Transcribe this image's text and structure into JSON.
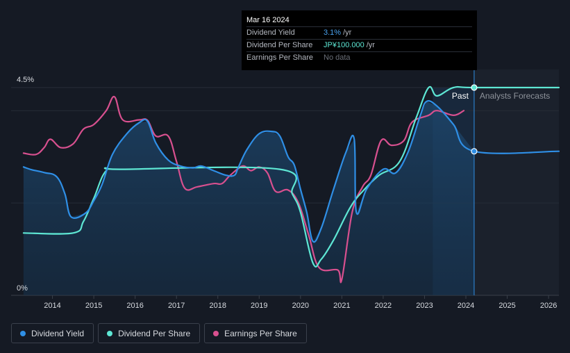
{
  "tooltip": {
    "date": "Mar 16 2024",
    "rows": [
      {
        "label": "Dividend Yield",
        "value": "3.1%",
        "unit": "/yr"
      },
      {
        "label": "Dividend Per Share",
        "value": "JP¥100.000",
        "unit": "/yr"
      },
      {
        "label": "Earnings Per Share",
        "value": "No data"
      }
    ]
  },
  "legend": [
    {
      "label": "Dividend Yield",
      "color": "#2f8fe6"
    },
    {
      "label": "Dividend Per Share",
      "color": "#5ee7d4"
    },
    {
      "label": "Earnings Per Share",
      "color": "#d8508f"
    }
  ],
  "chart_data": {
    "type": "line",
    "y_top_label": "4.5%",
    "y_bottom_label": "0%",
    "ylim": [
      0,
      4.5
    ],
    "xlim": [
      2013.0,
      2026.25
    ],
    "x_ticks": [
      "2014",
      "2015",
      "2016",
      "2017",
      "2018",
      "2019",
      "2020",
      "2021",
      "2022",
      "2023",
      "2024",
      "2025",
      "2026"
    ],
    "past_label": "Past",
    "forecast_label": "Analysts Forecasts",
    "highlight_start": 2023.2,
    "divider_x": 2024.2,
    "series": [
      {
        "name": "Dividend Yield",
        "color": "#2f8fe6",
        "points": [
          [
            2013.3,
            2.78
          ],
          [
            2013.5,
            2.72
          ],
          [
            2013.8,
            2.66
          ],
          [
            2014.1,
            2.57
          ],
          [
            2014.3,
            2.2
          ],
          [
            2014.45,
            1.7
          ],
          [
            2014.8,
            1.78
          ],
          [
            2015.0,
            2.05
          ],
          [
            2015.2,
            2.4
          ],
          [
            2015.45,
            3.05
          ],
          [
            2015.8,
            3.5
          ],
          [
            2016.1,
            3.74
          ],
          [
            2016.3,
            3.77
          ],
          [
            2016.5,
            3.3
          ],
          [
            2016.8,
            2.93
          ],
          [
            2017.1,
            2.8
          ],
          [
            2017.4,
            2.76
          ],
          [
            2017.6,
            2.8
          ],
          [
            2017.9,
            2.7
          ],
          [
            2018.2,
            2.6
          ],
          [
            2018.4,
            2.6
          ],
          [
            2018.5,
            2.78
          ],
          [
            2018.7,
            3.15
          ],
          [
            2019.0,
            3.5
          ],
          [
            2019.3,
            3.55
          ],
          [
            2019.5,
            3.45
          ],
          [
            2019.7,
            3.0
          ],
          [
            2019.85,
            2.82
          ],
          [
            2020.0,
            2.3
          ],
          [
            2020.15,
            1.8
          ],
          [
            2020.3,
            1.17
          ],
          [
            2020.5,
            1.45
          ],
          [
            2020.8,
            2.3
          ],
          [
            2021.1,
            3.1
          ],
          [
            2021.3,
            3.38
          ],
          [
            2021.35,
            1.8
          ],
          [
            2021.6,
            2.3
          ],
          [
            2022.0,
            2.73
          ],
          [
            2022.3,
            2.65
          ],
          [
            2022.6,
            3.1
          ],
          [
            2022.9,
            3.9
          ],
          [
            2023.05,
            4.2
          ],
          [
            2023.3,
            4.1
          ],
          [
            2023.7,
            3.7
          ],
          [
            2024.2,
            3.12
          ],
          [
            2026.25,
            3.12
          ]
        ]
      },
      {
        "name": "Dividend Per Share",
        "color": "#5ee7d4",
        "points": [
          [
            2013.3,
            1.35
          ],
          [
            2014.5,
            1.35
          ],
          [
            2014.75,
            1.6
          ],
          [
            2015.0,
            2.1
          ],
          [
            2015.3,
            2.7
          ],
          [
            2015.7,
            2.73
          ],
          [
            2019.5,
            2.73
          ],
          [
            2019.8,
            2.2
          ],
          [
            2020.0,
            1.8
          ],
          [
            2020.3,
            0.7
          ],
          [
            2020.5,
            0.78
          ],
          [
            2020.8,
            1.2
          ],
          [
            2021.2,
            1.9
          ],
          [
            2021.5,
            2.25
          ],
          [
            2021.9,
            2.6
          ],
          [
            2022.4,
            2.9
          ],
          [
            2022.8,
            3.85
          ],
          [
            2023.1,
            4.5
          ],
          [
            2023.3,
            4.32
          ],
          [
            2023.7,
            4.5
          ],
          [
            2024.2,
            4.5
          ],
          [
            2026.25,
            4.5
          ]
        ]
      },
      {
        "name": "Earnings Per Share",
        "color": "#d8508f",
        "points": [
          [
            2013.3,
            3.08
          ],
          [
            2013.6,
            3.05
          ],
          [
            2013.8,
            3.2
          ],
          [
            2013.95,
            3.38
          ],
          [
            2014.2,
            3.2
          ],
          [
            2014.5,
            3.28
          ],
          [
            2014.75,
            3.6
          ],
          [
            2015.0,
            3.7
          ],
          [
            2015.3,
            4.0
          ],
          [
            2015.5,
            4.3
          ],
          [
            2015.7,
            3.8
          ],
          [
            2016.1,
            3.8
          ],
          [
            2016.3,
            3.79
          ],
          [
            2016.5,
            3.45
          ],
          [
            2016.8,
            3.45
          ],
          [
            2017.0,
            2.9
          ],
          [
            2017.2,
            2.32
          ],
          [
            2017.5,
            2.35
          ],
          [
            2017.9,
            2.42
          ],
          [
            2018.1,
            2.42
          ],
          [
            2018.3,
            2.6
          ],
          [
            2018.6,
            2.8
          ],
          [
            2018.8,
            2.7
          ],
          [
            2019.0,
            2.78
          ],
          [
            2019.2,
            2.65
          ],
          [
            2019.4,
            2.25
          ],
          [
            2019.7,
            2.28
          ],
          [
            2019.95,
            2.0
          ],
          [
            2020.2,
            1.3
          ],
          [
            2020.45,
            0.6
          ],
          [
            2020.9,
            0.55
          ],
          [
            2021.0,
            0.35
          ],
          [
            2021.25,
            1.8
          ],
          [
            2021.5,
            2.35
          ],
          [
            2021.7,
            2.6
          ],
          [
            2021.95,
            3.35
          ],
          [
            2022.2,
            3.25
          ],
          [
            2022.5,
            3.35
          ],
          [
            2022.7,
            3.75
          ],
          [
            2023.1,
            3.9
          ],
          [
            2023.3,
            4.0
          ],
          [
            2023.7,
            3.9
          ],
          [
            2023.95,
            4.0
          ]
        ]
      }
    ]
  }
}
